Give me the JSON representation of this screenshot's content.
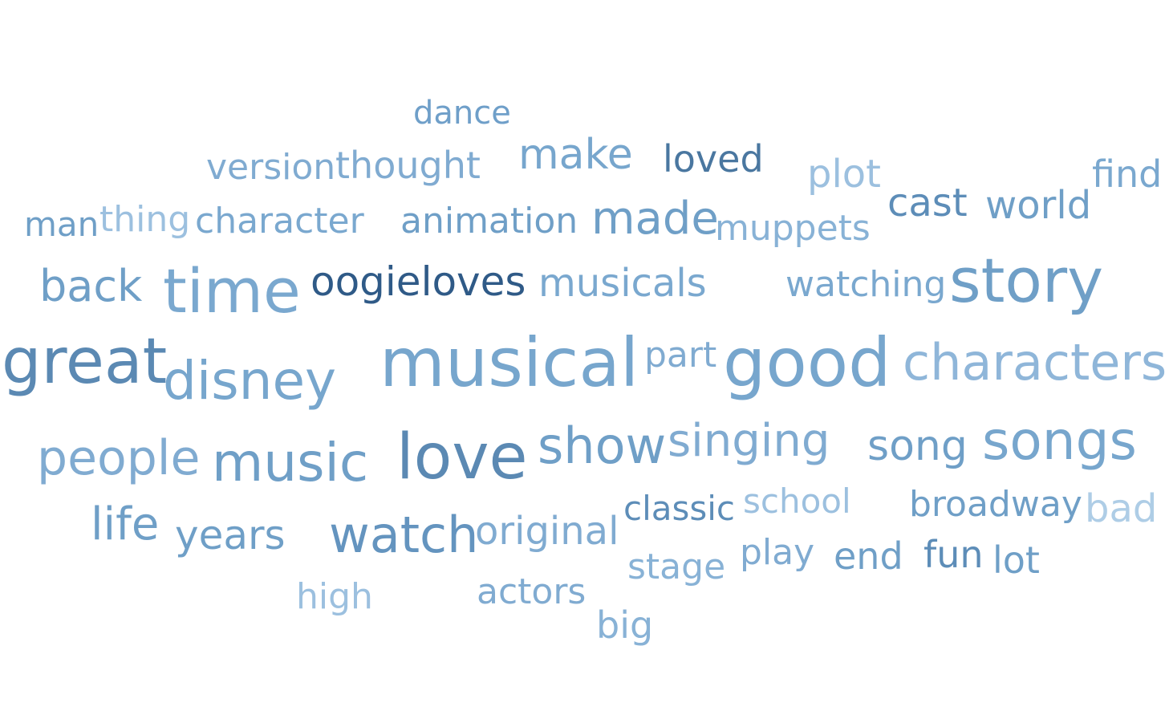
{
  "words": [
    {
      "text": "dance",
      "color": "#6f9fc9"
    },
    {
      "text": "version",
      "color": "#80abd1"
    },
    {
      "text": "thought",
      "color": "#80abd1"
    },
    {
      "text": "make",
      "color": "#77a6cd"
    },
    {
      "text": "loved",
      "color": "#4a77a0"
    },
    {
      "text": "plot",
      "color": "#9cc0df"
    },
    {
      "text": "find",
      "color": "#7aa8cf"
    },
    {
      "text": "man",
      "color": "#6f9fc7"
    },
    {
      "text": "thing",
      "color": "#9cc0df"
    },
    {
      "text": "character",
      "color": "#7aa8cf"
    },
    {
      "text": "animation",
      "color": "#6f9fc7"
    },
    {
      "text": "made",
      "color": "#6f9fc7"
    },
    {
      "text": "muppets",
      "color": "#88b2d6"
    },
    {
      "text": "cast",
      "color": "#5d8db8"
    },
    {
      "text": "world",
      "color": "#6f9fc7"
    },
    {
      "text": "back",
      "color": "#6f9fc7"
    },
    {
      "text": "time",
      "color": "#7aa8cf"
    },
    {
      "text": "oogieloves",
      "color": "#2f5a87"
    },
    {
      "text": "musicals",
      "color": "#7aa8cf"
    },
    {
      "text": "watching",
      "color": "#7aa8cf"
    },
    {
      "text": "story",
      "color": "#6f9fc7"
    },
    {
      "text": "great",
      "color": "#5b89b3"
    },
    {
      "text": "disney",
      "color": "#77a6cd"
    },
    {
      "text": "musical",
      "color": "#77a6cd"
    },
    {
      "text": "part",
      "color": "#80abd1"
    },
    {
      "text": "good",
      "color": "#77a6cd"
    },
    {
      "text": "characters",
      "color": "#8fb6d9"
    },
    {
      "text": "people",
      "color": "#80abd1"
    },
    {
      "text": "music",
      "color": "#6f9fc7"
    },
    {
      "text": "love",
      "color": "#5b89b3"
    },
    {
      "text": "show",
      "color": "#6f9fc7"
    },
    {
      "text": "singing",
      "color": "#80abd1"
    },
    {
      "text": "song",
      "color": "#6f9fc7"
    },
    {
      "text": "songs",
      "color": "#77a6cd"
    },
    {
      "text": "life",
      "color": "#6f9fc7"
    },
    {
      "text": "years",
      "color": "#6f9fc7"
    },
    {
      "text": "watch",
      "color": "#6494bf"
    },
    {
      "text": "original",
      "color": "#80abd1"
    },
    {
      "text": "classic",
      "color": "#5d8db8"
    },
    {
      "text": "school",
      "color": "#9cc0df"
    },
    {
      "text": "broadway",
      "color": "#6f9fc7"
    },
    {
      "text": "bad",
      "color": "#aecde6"
    },
    {
      "text": "stage",
      "color": "#88b2d6"
    },
    {
      "text": "play",
      "color": "#80abd1"
    },
    {
      "text": "end",
      "color": "#6f9fc7"
    },
    {
      "text": "fun",
      "color": "#5d8db8"
    },
    {
      "text": "lot",
      "color": "#6f9fc7"
    },
    {
      "text": "high",
      "color": "#9cc0df"
    },
    {
      "text": "actors",
      "color": "#80abd1"
    },
    {
      "text": "big",
      "color": "#88b2d6"
    }
  ]
}
